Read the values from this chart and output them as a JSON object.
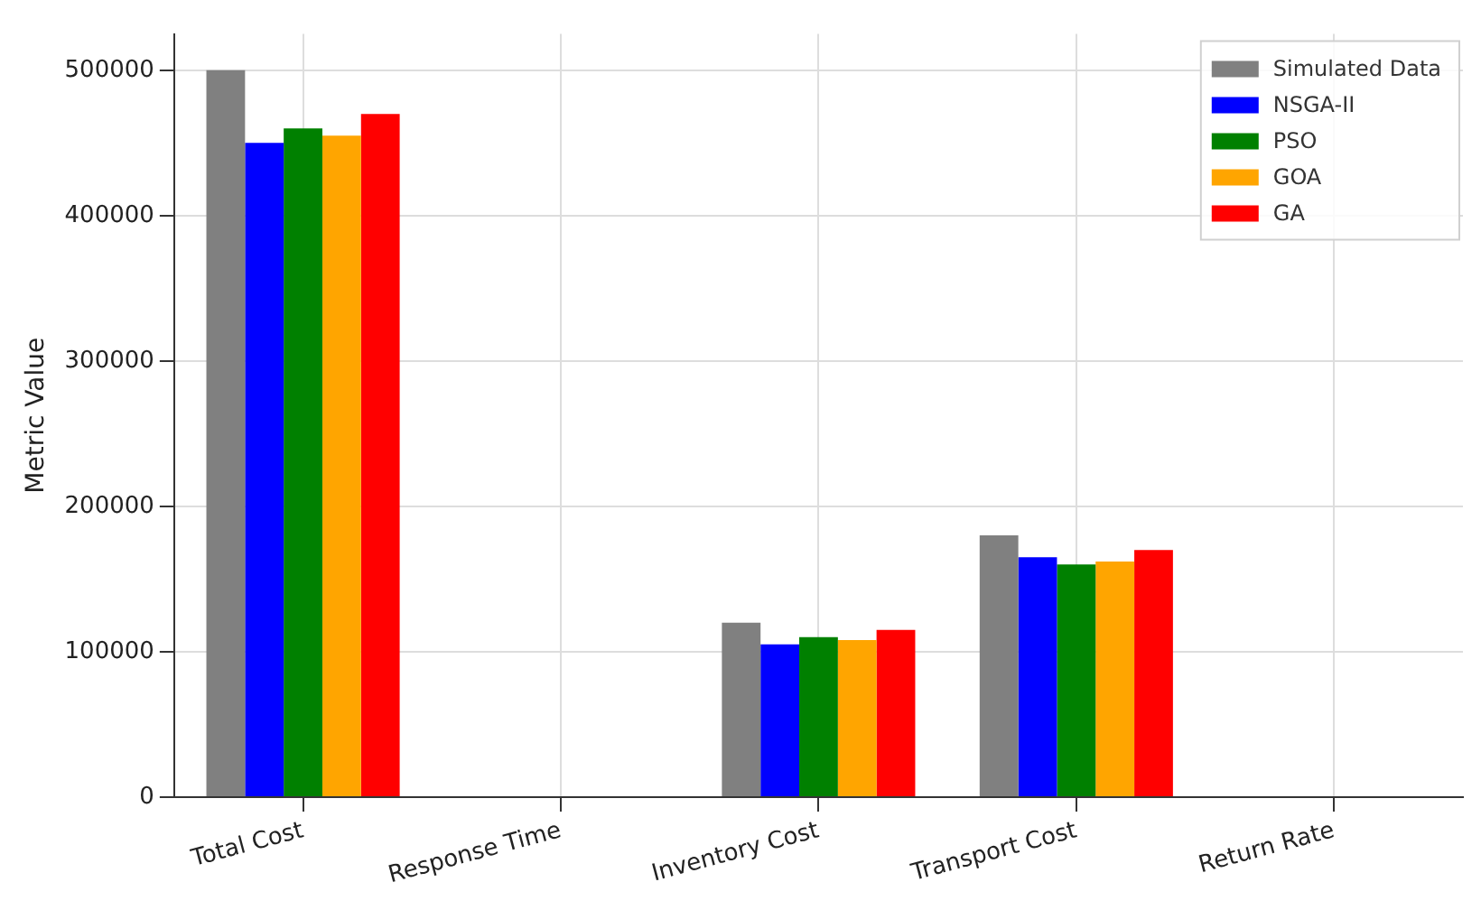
{
  "chart_data": {
    "type": "bar",
    "ylabel": "Metric Value",
    "categories": [
      "Total Cost",
      "Response Time",
      "Inventory Cost",
      "Transport Cost",
      "Return Rate"
    ],
    "series": [
      {
        "name": "Simulated Data",
        "color": "#808080",
        "values": [
          500000,
          0,
          120000,
          180000,
          0
        ]
      },
      {
        "name": "NSGA-II",
        "color": "#0000ff",
        "values": [
          450000,
          0,
          105000,
          165000,
          0
        ]
      },
      {
        "name": "PSO",
        "color": "#008000",
        "values": [
          460000,
          0,
          110000,
          160000,
          0
        ]
      },
      {
        "name": "GOA",
        "color": "#ffa500",
        "values": [
          455000,
          0,
          108000,
          162000,
          0
        ]
      },
      {
        "name": "GA",
        "color": "#ff0000",
        "values": [
          470000,
          0,
          115000,
          170000,
          0
        ]
      }
    ],
    "ylim": [
      0,
      525000
    ],
    "yticks": [
      0,
      100000,
      200000,
      300000,
      400000,
      500000
    ],
    "grid": true,
    "legend": "top right"
  }
}
